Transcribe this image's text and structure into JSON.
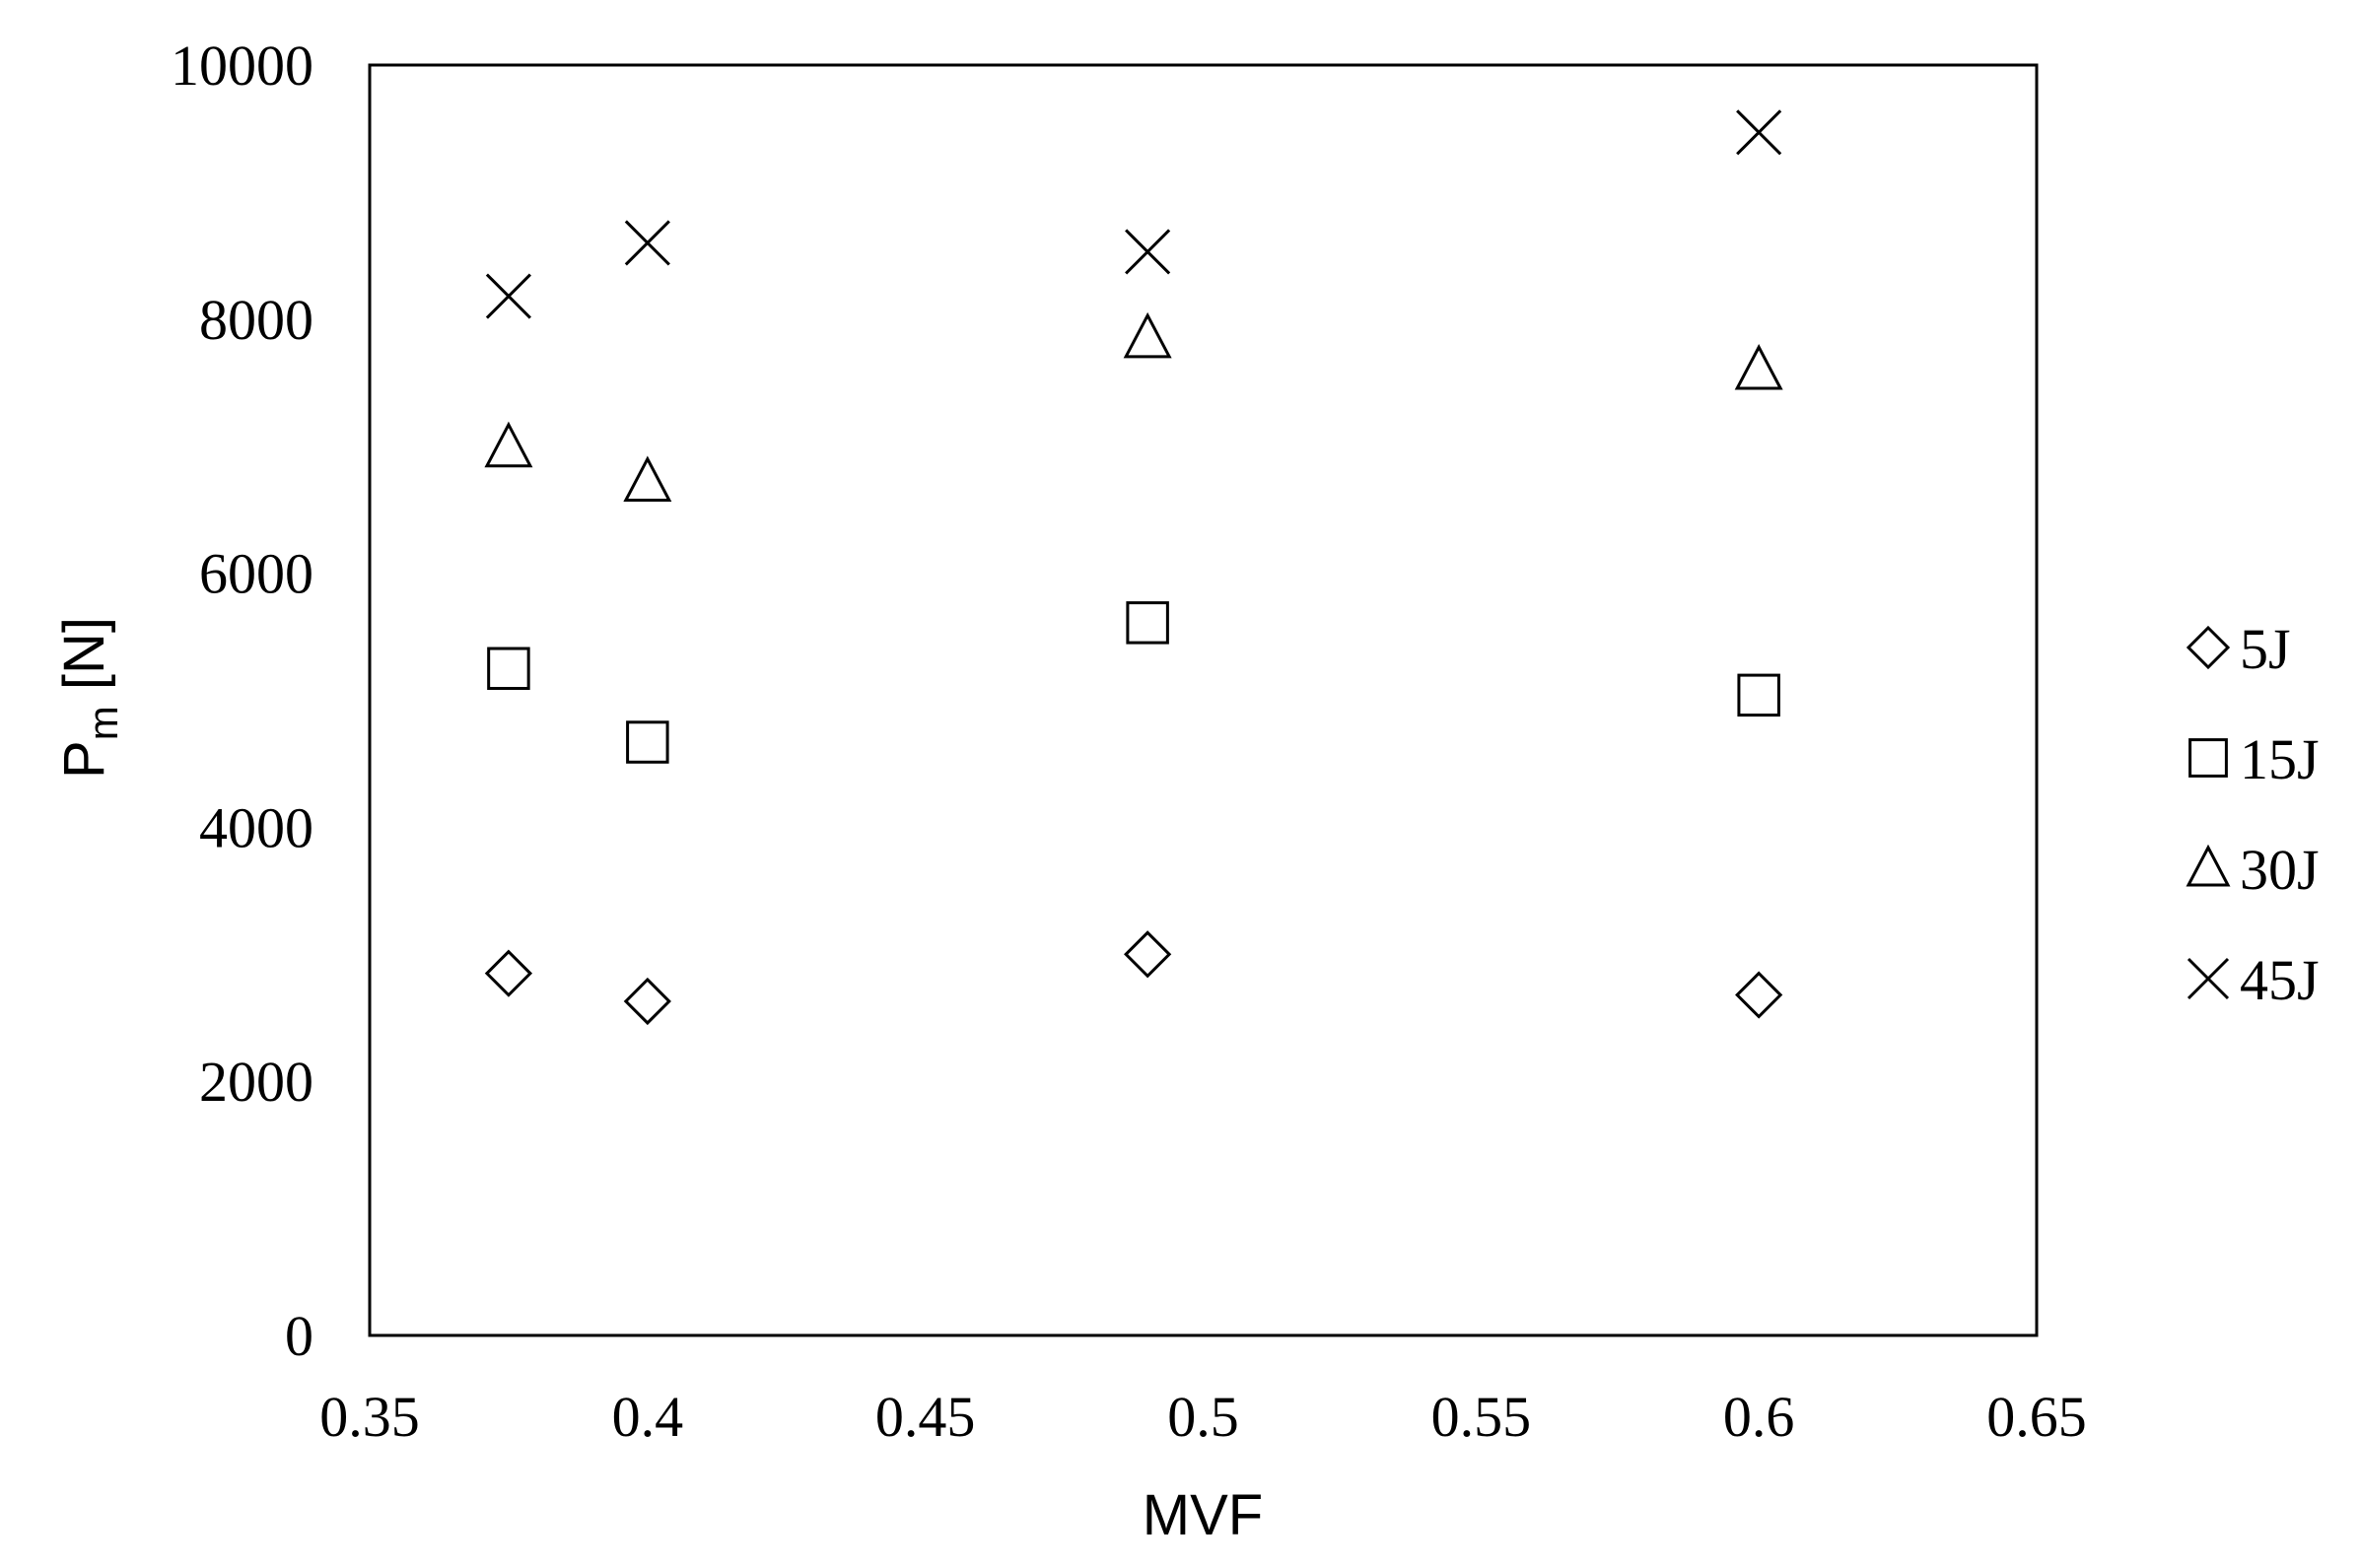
{
  "chart_data": {
    "type": "scatter",
    "title": "",
    "xlabel": "MVF",
    "ylabel": {
      "main": "P",
      "subscript": "m",
      "unit": " [N]"
    },
    "xlim": [
      0.35,
      0.65
    ],
    "ylim": [
      0,
      10000
    ],
    "x_ticks": [
      "0.35",
      "0.4",
      "0.45",
      "0.5",
      "0.55",
      "0.6",
      "0.65"
    ],
    "y_ticks": [
      "0",
      "2000",
      "4000",
      "6000",
      "8000",
      "10000"
    ],
    "x_tick_values": [
      0.35,
      0.4,
      0.45,
      0.5,
      0.55,
      0.6,
      0.65
    ],
    "y_tick_values": [
      0,
      2000,
      4000,
      6000,
      8000,
      10000
    ],
    "grid": false,
    "legend_position": "right",
    "series": [
      {
        "name": "5J",
        "marker": "diamond-icon",
        "x": [
          0.375,
          0.4,
          0.49,
          0.6
        ],
        "y": [
          2850,
          2630,
          3000,
          2680
        ]
      },
      {
        "name": "15J",
        "marker": "square-icon",
        "x": [
          0.375,
          0.4,
          0.49,
          0.6
        ],
        "y": [
          5250,
          4670,
          5610,
          5040
        ]
      },
      {
        "name": "30J",
        "marker": "triangle-icon",
        "x": [
          0.375,
          0.4,
          0.49,
          0.6
        ],
        "y": [
          6990,
          6720,
          7850,
          7600
        ]
      },
      {
        "name": "45J",
        "marker": "x-icon",
        "x": [
          0.375,
          0.4,
          0.49,
          0.6
        ],
        "y": [
          8180,
          8600,
          8530,
          9470
        ]
      }
    ],
    "colors": {
      "marker": "#000000",
      "axis": "#000000",
      "background": "#ffffff"
    }
  }
}
